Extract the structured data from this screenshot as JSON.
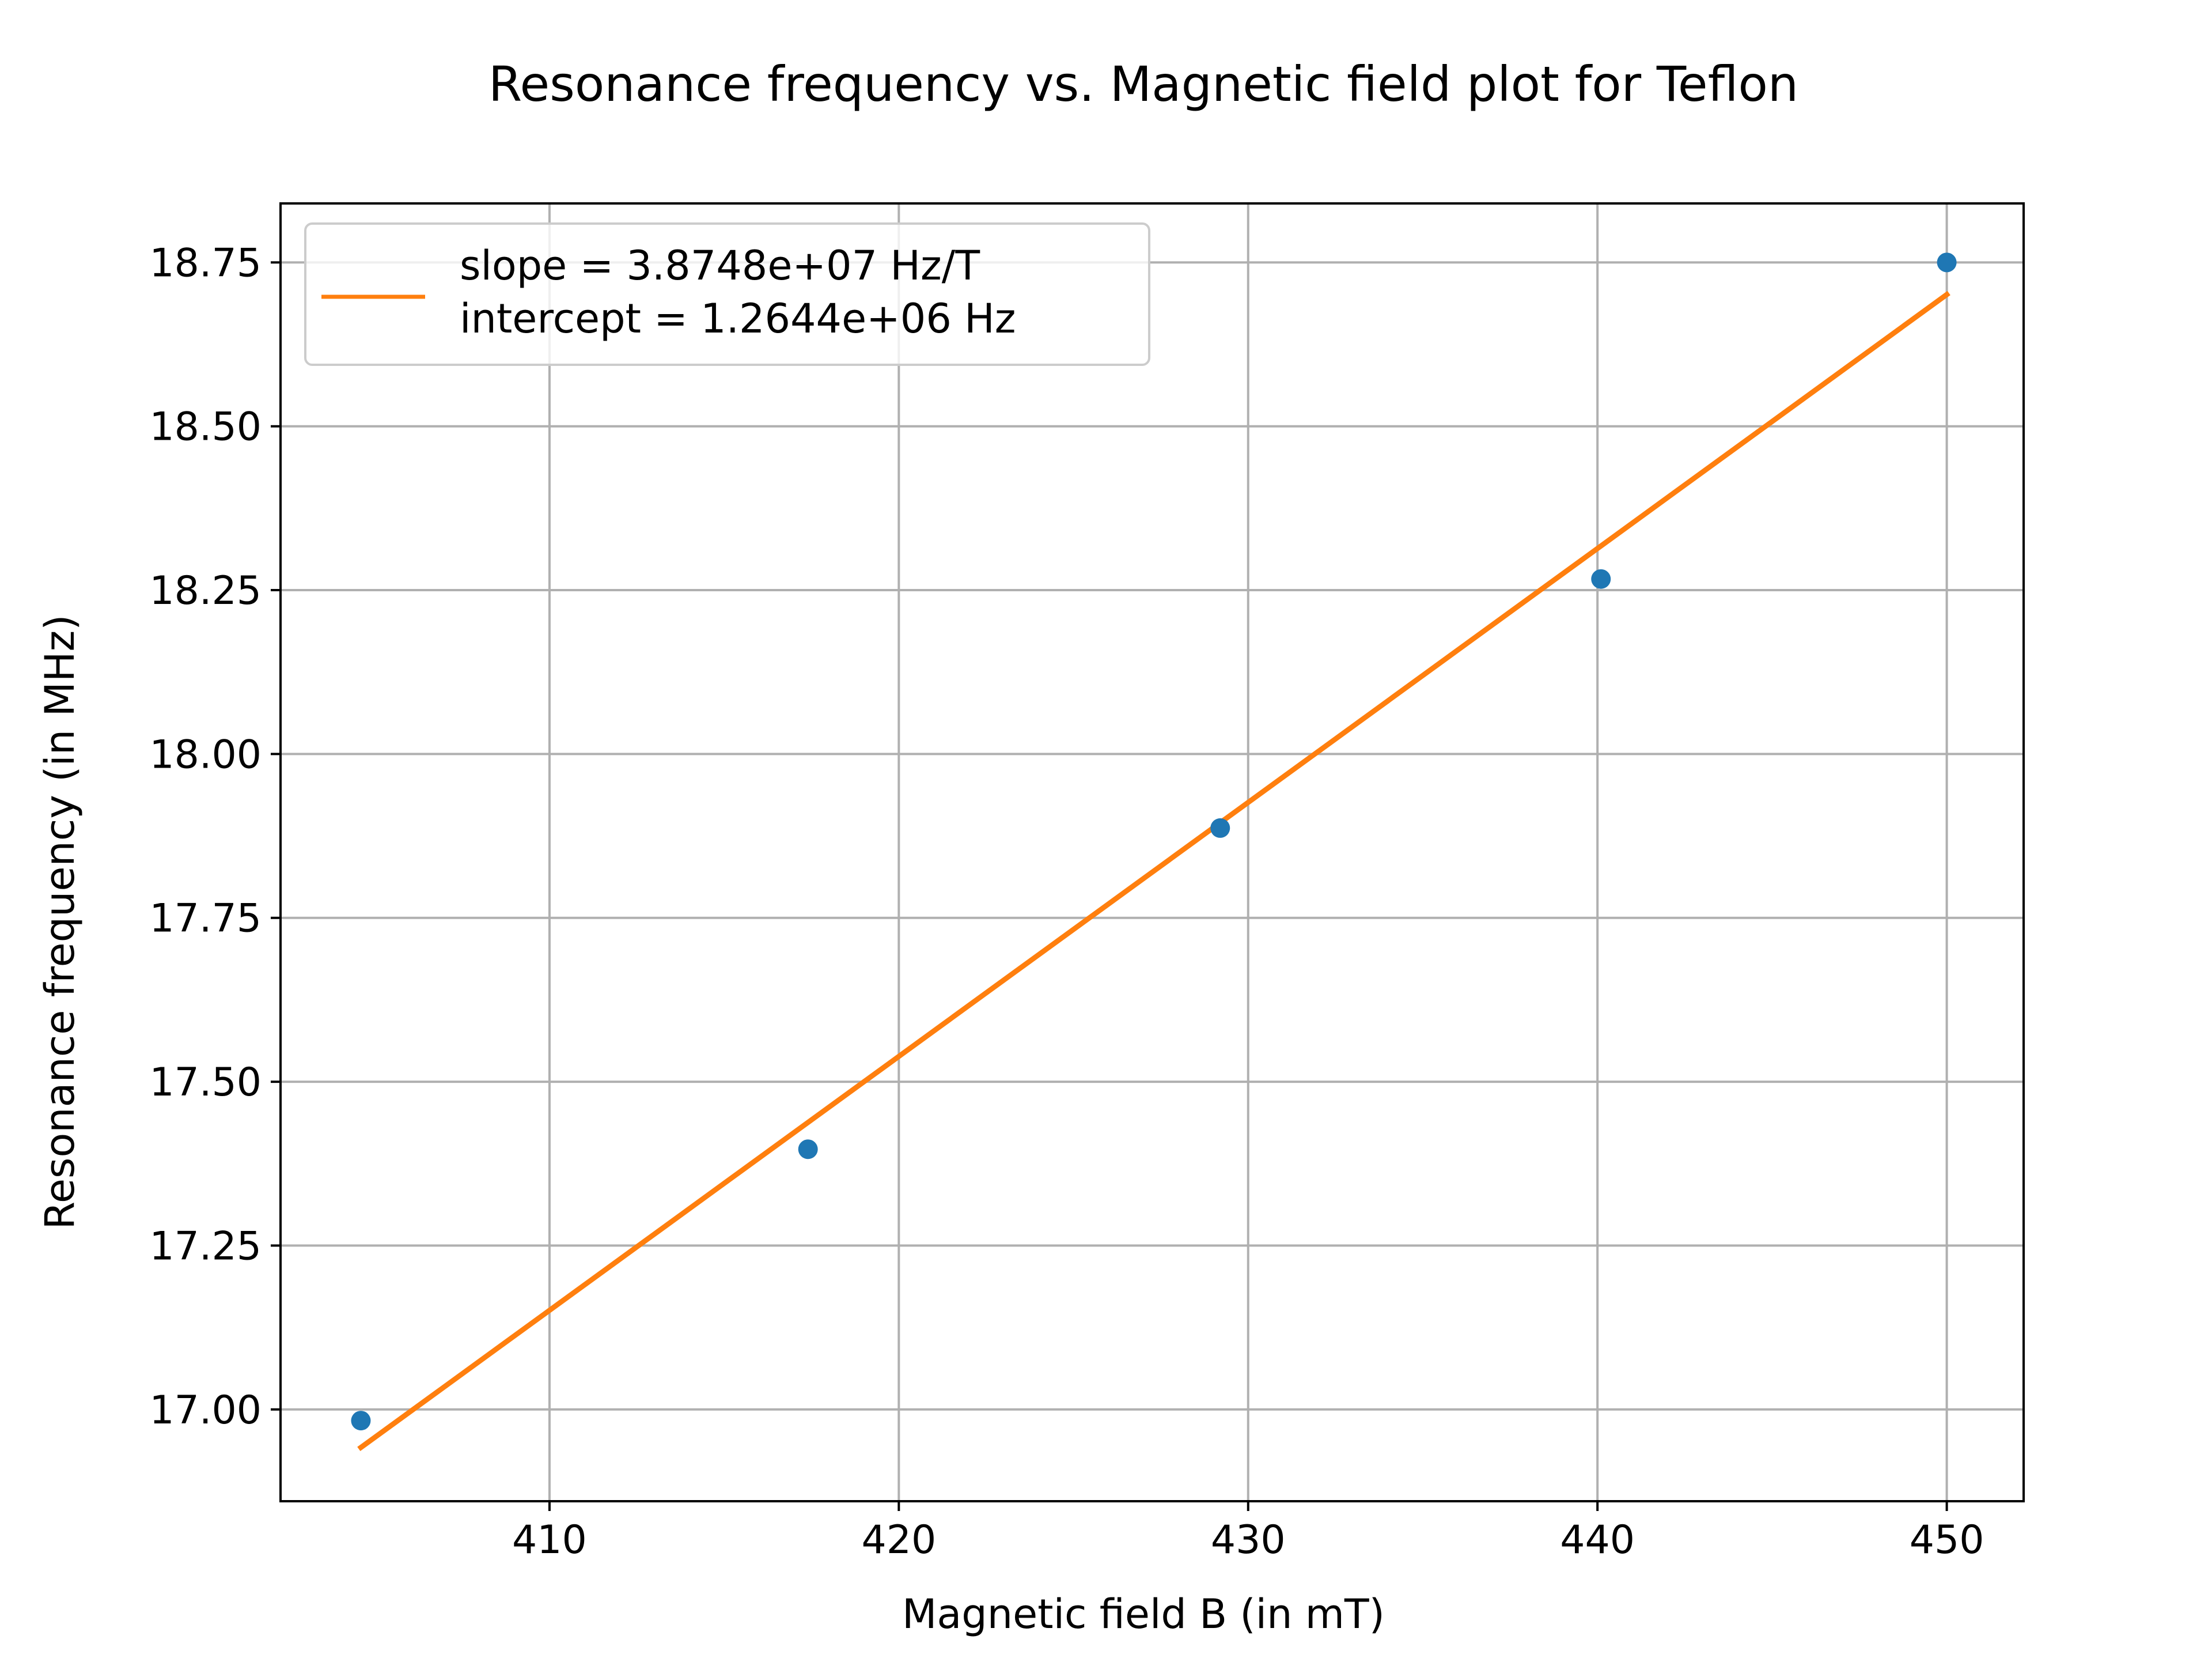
{
  "chart_data": {
    "type": "scatter",
    "title": "Resonance frequency vs. Magnetic field plot for Teflon",
    "xlabel": "Magnetic field B (in mT)",
    "ylabel": "Resonance frequency (in MHz)",
    "xlim": [
      402.3,
      452.2
    ],
    "ylim": [
      16.86,
      18.84
    ],
    "xticks": [
      "410",
      "420",
      "430",
      "440",
      "450"
    ],
    "yticks": [
      "17.00",
      "17.25",
      "17.50",
      "17.75",
      "18.00",
      "18.25",
      "18.50",
      "18.75"
    ],
    "grid": true,
    "legend_position": "top-left",
    "series": [
      {
        "kind": "scatter",
        "color": "#1f77b4",
        "x": [
          404.6,
          417.4,
          429.2,
          440.1,
          450.0
        ],
        "y": [
          16.983,
          17.397,
          17.887,
          18.267,
          18.75
        ]
      },
      {
        "kind": "line",
        "name": "slope = 3.8748e+07 Hz/T\nintercept = 1.2644e+06 Hz",
        "color": "#ff7f0e",
        "x": [
          404.6,
          450.0
        ],
        "y": [
          16.942,
          18.701
        ]
      }
    ],
    "legend": {
      "line1": "slope = 3.8748e+07 Hz/T",
      "line2": "intercept = 1.2644e+06 Hz"
    }
  }
}
